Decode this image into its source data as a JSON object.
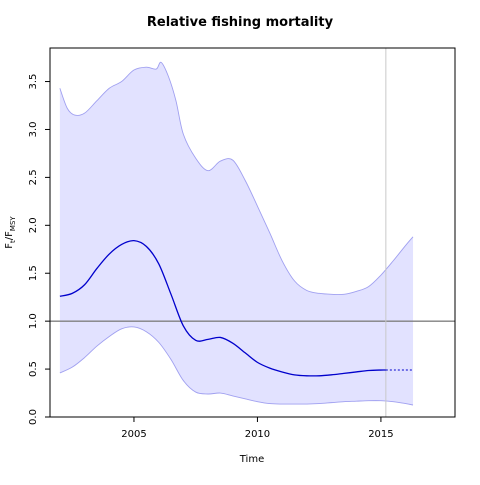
{
  "chart_data": {
    "type": "area",
    "title": "Relative fishing mortality",
    "xlabel": "Time",
    "ylabel": {
      "main": "F",
      "sub1": "t",
      "sep": "/F",
      "sub2": "MSY"
    },
    "xlim": [
      2001.6,
      2018.0
    ],
    "ylim": [
      0.0,
      3.85
    ],
    "x_ticks": [
      2005,
      2010,
      2015
    ],
    "y_ticks": [
      0.0,
      0.5,
      1.0,
      1.5,
      2.0,
      2.5,
      3.0,
      3.5
    ],
    "x_tick_labels": [
      "2005",
      "2010",
      "2015"
    ],
    "y_tick_labels": [
      "0.0",
      "0.5",
      "1.0",
      "1.5",
      "2.0",
      "2.5",
      "3.0",
      "3.5"
    ],
    "reference_line": {
      "y": 1.0,
      "color": "#808080"
    },
    "current_time_line": {
      "x": 2015.2,
      "color": "#c8c8c8"
    },
    "colors": {
      "median": "#0000cc",
      "band_fill": "#e2e2ff",
      "band_edge": "#a0a0f0"
    },
    "series": [
      {
        "role": "median",
        "x": [
          2002.0,
          2002.5,
          2003.0,
          2003.5,
          2004.0,
          2004.5,
          2005.0,
          2005.5,
          2006.0,
          2006.5,
          2007.0,
          2007.5,
          2008.0,
          2008.5,
          2009.0,
          2009.5,
          2010.0,
          2010.5,
          2011.0,
          2011.5,
          2012.0,
          2012.5,
          2013.0,
          2013.5,
          2014.0,
          2014.5,
          2015.0,
          2015.2
        ],
        "y": [
          1.26,
          1.29,
          1.38,
          1.55,
          1.7,
          1.8,
          1.84,
          1.78,
          1.6,
          1.28,
          0.95,
          0.8,
          0.81,
          0.83,
          0.77,
          0.67,
          0.57,
          0.51,
          0.47,
          0.44,
          0.43,
          0.43,
          0.44,
          0.455,
          0.47,
          0.485,
          0.49,
          0.49
        ]
      },
      {
        "role": "projection",
        "x": [
          2015.2,
          2015.6,
          2016.0,
          2016.3
        ],
        "y": [
          0.49,
          0.49,
          0.49,
          0.49
        ]
      },
      {
        "role": "upper",
        "x": [
          2002.0,
          2002.3,
          2002.6,
          2003.0,
          2003.5,
          2004.0,
          2004.5,
          2005.0,
          2005.5,
          2005.9,
          2006.1,
          2006.4,
          2006.7,
          2007.0,
          2007.5,
          2008.0,
          2008.5,
          2009.0,
          2009.5,
          2010.0,
          2010.5,
          2011.0,
          2011.5,
          2012.0,
          2012.5,
          2013.0,
          2013.5,
          2014.0,
          2014.5,
          2015.0,
          2015.5,
          2016.0,
          2016.3
        ],
        "y": [
          3.43,
          3.22,
          3.15,
          3.17,
          3.3,
          3.43,
          3.5,
          3.62,
          3.65,
          3.63,
          3.7,
          3.55,
          3.3,
          2.95,
          2.7,
          2.57,
          2.67,
          2.68,
          2.47,
          2.2,
          1.92,
          1.63,
          1.42,
          1.32,
          1.29,
          1.28,
          1.28,
          1.31,
          1.36,
          1.48,
          1.63,
          1.79,
          1.88
        ]
      },
      {
        "role": "lower",
        "x": [
          2002.0,
          2002.5,
          2003.0,
          2003.5,
          2004.0,
          2004.5,
          2005.0,
          2005.5,
          2006.0,
          2006.5,
          2007.0,
          2007.5,
          2008.0,
          2008.5,
          2009.0,
          2009.5,
          2010.0,
          2010.5,
          2011.0,
          2011.5,
          2012.0,
          2012.5,
          2013.0,
          2013.5,
          2014.0,
          2014.5,
          2015.0,
          2015.5,
          2016.0,
          2016.3
        ],
        "y": [
          0.46,
          0.52,
          0.62,
          0.74,
          0.84,
          0.92,
          0.94,
          0.89,
          0.78,
          0.6,
          0.38,
          0.26,
          0.24,
          0.25,
          0.22,
          0.19,
          0.16,
          0.14,
          0.135,
          0.135,
          0.135,
          0.14,
          0.15,
          0.16,
          0.165,
          0.17,
          0.17,
          0.16,
          0.14,
          0.125
        ]
      }
    ]
  }
}
